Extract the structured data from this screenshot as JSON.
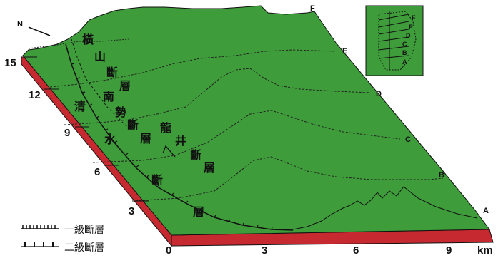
{
  "faults": {
    "hengshan": [
      "橫",
      "山",
      "斷",
      "層"
    ],
    "nanshi": [
      "南",
      "勢",
      "斷",
      "層"
    ],
    "qingshui": [
      "清",
      "水",
      "斷",
      "層"
    ],
    "longjing": [
      "龍",
      "井",
      "斷",
      "層"
    ]
  },
  "section_labels": [
    "A",
    "B",
    "C",
    "D",
    "E",
    "F"
  ],
  "inset_labels": [
    "A",
    "B",
    "C",
    "D",
    "E",
    "F"
  ],
  "vertical_scale": [
    "3",
    "6",
    "9",
    "12",
    "15"
  ],
  "horizontal_scale": [
    "0",
    "3",
    "6",
    "9"
  ],
  "unit": "km",
  "legend": {
    "primary": "一級斷層",
    "secondary": "二級斷層"
  },
  "north_arrow": "N",
  "colors": {
    "terrain": "#3e9c3a",
    "base_side": "#c62930",
    "line": "#111111"
  }
}
